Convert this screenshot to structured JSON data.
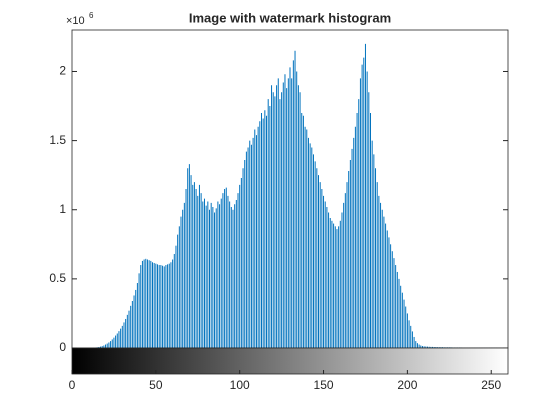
{
  "chart_data": {
    "type": "histogram",
    "title": "Image with watermark histogram",
    "y_exponent": {
      "base": "×10",
      "power": "6"
    },
    "color": "#0072bd",
    "xlim": [
      0,
      260
    ],
    "xticks": [
      0,
      50,
      100,
      150,
      200,
      250
    ],
    "ylim": [
      0,
      2300000
    ],
    "yticks": [
      {
        "value": 0,
        "label": "0"
      },
      {
        "value": 500000,
        "label": "0.5"
      },
      {
        "value": 1000000,
        "label": "1"
      },
      {
        "value": 1500000,
        "label": "1.5"
      },
      {
        "value": 2000000,
        "label": "2"
      }
    ],
    "values": [
      0,
      0,
      0,
      0,
      0,
      0,
      0,
      0,
      0,
      0,
      0,
      0,
      0,
      2000,
      3000,
      5000,
      7000,
      10000,
      14000,
      18000,
      25000,
      32000,
      40000,
      50000,
      62000,
      75000,
      90000,
      105000,
      122000,
      140000,
      160000,
      185000,
      210000,
      240000,
      270000,
      305000,
      340000,
      380000,
      420000,
      470000,
      540000,
      600000,
      630000,
      640000,
      645000,
      640000,
      635000,
      630000,
      620000,
      615000,
      610000,
      605000,
      600000,
      600000,
      595000,
      590000,
      600000,
      605000,
      610000,
      620000,
      640000,
      680000,
      740000,
      820000,
      880000,
      950000,
      1000000,
      1050000,
      1150000,
      1300000,
      1330000,
      1250000,
      1180000,
      1200000,
      1150000,
      1100000,
      1180000,
      1120000,
      1060000,
      1080000,
      1030000,
      1060000,
      1000000,
      1050000,
      1020000,
      980000,
      1010000,
      1060000,
      1040000,
      1080000,
      1120000,
      1150000,
      1160000,
      1100000,
      1060000,
      1020000,
      1000000,
      1040000,
      1070000,
      1120000,
      1180000,
      1230000,
      1300000,
      1360000,
      1420000,
      1450000,
      1500000,
      1470000,
      1520000,
      1580000,
      1540000,
      1600000,
      1640000,
      1700000,
      1660000,
      1720000,
      1680000,
      1800000,
      1750000,
      1900000,
      1850000,
      1820000,
      1900000,
      1950000,
      1800000,
      1850000,
      1920000,
      1980000,
      1880000,
      1950000,
      2030000,
      1950000,
      2080000,
      2150000,
      2000000,
      1900000,
      1850000,
      1700000,
      1680000,
      1600000,
      1580000,
      1520000,
      1480000,
      1450000,
      1400000,
      1350000,
      1300000,
      1250000,
      1200000,
      1150000,
      1100000,
      1060000,
      1020000,
      980000,
      940000,
      920000,
      900000,
      880000,
      860000,
      880000,
      920000,
      980000,
      1050000,
      1120000,
      1200000,
      1280000,
      1360000,
      1440000,
      1520000,
      1600000,
      1700000,
      1800000,
      1950000,
      2050000,
      2100000,
      2200000,
      2000000,
      1850000,
      1700000,
      1500000,
      1400000,
      1300000,
      1200000,
      1100000,
      1050000,
      1000000,
      950000,
      900000,
      850000,
      800000,
      750000,
      700000,
      650000,
      600000,
      550000,
      500000,
      450000,
      400000,
      350000,
      300000,
      250000,
      200000,
      160000,
      120000,
      80000,
      50000,
      35000,
      25000,
      18000,
      14000,
      12000,
      11000,
      10000,
      9000,
      8000,
      8000,
      7000,
      7000,
      6000,
      6000,
      6000,
      6000,
      5000,
      5000,
      5000,
      5000,
      5000,
      4000,
      4000,
      4000,
      4000,
      4000,
      4000,
      3000,
      3000,
      3000,
      3000,
      3000,
      3000,
      3000,
      3000,
      3000,
      3000,
      3000,
      3000,
      3000,
      3000,
      3000,
      3000,
      3000,
      3000,
      3000,
      3000,
      3000,
      2000,
      2000
    ]
  }
}
